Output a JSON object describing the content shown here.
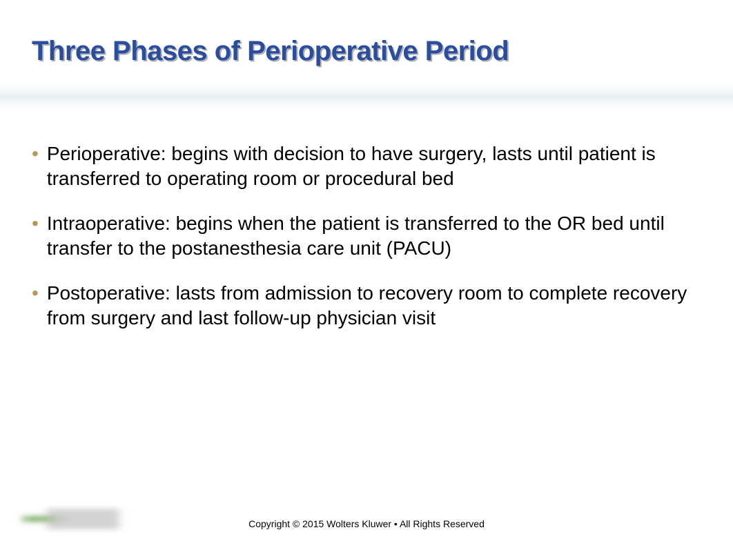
{
  "title": "Three Phases of Perioperative Period",
  "title_color": "#2b4d9f",
  "title_fontsize": 40,
  "title_shadow_color": "#b0b0b0",
  "bullet_color": "#b49a54",
  "body_fontsize": 28,
  "body_color": "#000000",
  "background_color": "#ffffff",
  "bullets": [
    "Perioperative: begins with decision to have surgery, lasts until patient is transferred to operating room or procedural bed",
    "Intraoperative: begins when the patient is transferred to the OR bed until transfer to the postanesthesia care unit (PACU)",
    "Postoperative: lasts from admission to recovery room to complete recovery from surgery and last follow-up physician visit"
  ],
  "footer": "Copyright © 2015 Wolters Kluwer • All Rights Reserved",
  "footer_fontsize": 14,
  "footer_color": "#000000"
}
